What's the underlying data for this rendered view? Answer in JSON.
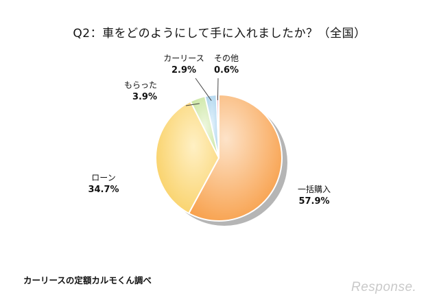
{
  "chart_data": {
    "type": "pie",
    "title": "Q2：車をどのようにして手に入れましたか？（全国）",
    "slices": [
      {
        "label": "一括購入",
        "value": 57.9,
        "value_label": "57.9%",
        "color": "#f7973a"
      },
      {
        "label": "ローン",
        "value": 34.7,
        "value_label": "34.7%",
        "color": "#fbd066"
      },
      {
        "label": "もらった",
        "value": 3.9,
        "value_label": "3.9%",
        "color": "#c7e3a1"
      },
      {
        "label": "カーリース",
        "value": 2.9,
        "value_label": "2.9%",
        "color": "#a9d2ee"
      },
      {
        "label": "その他",
        "value": 0.6,
        "value_label": "0.6%",
        "color": "#f4a0b2"
      }
    ]
  },
  "source": "カーリースの定額カルモくん調べ",
  "brand": "Response."
}
